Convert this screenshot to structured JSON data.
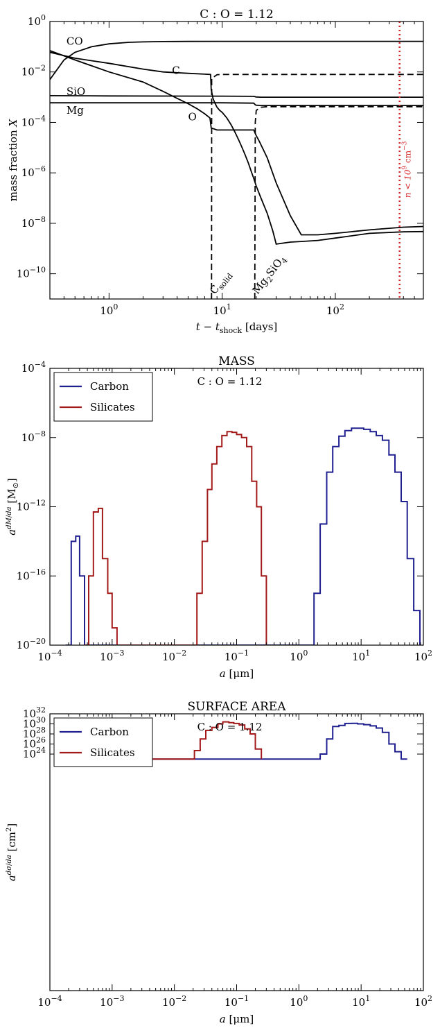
{
  "chart_data": [
    {
      "type": "line",
      "title": "C : O = 1.12",
      "xlabel_html": "t − t",
      "xlabel_sub": "shock",
      "xlabel_unit": "[days]",
      "ylabel_text": "mass fraction",
      "ylabel_var": "X",
      "xscale": "log",
      "yscale": "log",
      "xlim": [
        0.3,
        600
      ],
      "ylim": [
        1e-11,
        1
      ],
      "x_ticks": [
        {
          "v": 1,
          "b": "10",
          "e": "0"
        },
        {
          "v": 10,
          "b": "10",
          "e": "1"
        },
        {
          "v": 100,
          "b": "10",
          "e": "2"
        }
      ],
      "y_ticks": [
        {
          "v": 1,
          "b": "10",
          "e": "0"
        },
        {
          "v": 0.01,
          "b": "10",
          "e": "−2"
        },
        {
          "v": 0.0001,
          "b": "10",
          "e": "−4"
        },
        {
          "v": 1e-06,
          "b": "10",
          "e": "−6"
        },
        {
          "v": 1e-08,
          "b": "10",
          "e": "−8"
        },
        {
          "v": 1e-10,
          "b": "10",
          "e": "−10"
        }
      ],
      "series": [
        {
          "name": "CO",
          "style": "solid",
          "label_at": [
            0.42,
            0.12
          ],
          "x": [
            0.3,
            0.4,
            0.5,
            0.7,
            1,
            1.5,
            2,
            3,
            5,
            10,
            30,
            100,
            600
          ],
          "y": [
            0.005,
            0.03,
            0.06,
            0.1,
            0.13,
            0.15,
            0.155,
            0.16,
            0.162,
            0.163,
            0.163,
            0.163,
            0.163
          ]
        },
        {
          "name": "C",
          "style": "solid",
          "label_at": [
            3.6,
            0.0085
          ],
          "x": [
            0.3,
            0.5,
            1,
            2,
            3,
            5,
            7,
            7.9,
            8,
            8.3,
            8.6,
            9,
            9.5,
            10,
            11,
            12,
            13,
            14,
            15,
            16,
            17,
            18,
            19,
            20,
            22,
            25,
            28,
            30,
            40,
            50,
            70,
            100,
            200,
            400,
            600
          ],
          "y": [
            0.06,
            0.035,
            0.022,
            0.013,
            0.01,
            0.0088,
            0.0082,
            0.008,
            0.002,
            0.0009,
            0.0006,
            0.0004,
            0.0003,
            0.00025,
            0.00015,
            8e-05,
            4e-05,
            2e-05,
            1e-05,
            5e-06,
            2.5e-06,
            1.2e-06,
            6e-07,
            3e-07,
            1e-07,
            2.5e-08,
            5e-09,
            1.5e-09,
            1.8e-09,
            1.9e-09,
            2.1e-09,
            2.6e-09,
            4e-09,
            4.6e-09,
            4.7e-09
          ]
        },
        {
          "name": "SiO",
          "style": "solid",
          "label_at": [
            0.42,
            0.0012
          ],
          "x": [
            0.3,
            1,
            10,
            19,
            20,
            22,
            30,
            100,
            600
          ],
          "y": [
            0.00115,
            0.00112,
            0.0011,
            0.00108,
            0.00102,
            0.001,
            0.001,
            0.001,
            0.001
          ]
        },
        {
          "name": "Mg",
          "style": "solid",
          "label_at": [
            0.42,
            0.00022
          ],
          "x": [
            0.3,
            1,
            10,
            19,
            19.6,
            20,
            22,
            30,
            100,
            600
          ],
          "y": [
            0.0006,
            0.0006,
            0.0006,
            0.00058,
            0.0005,
            0.00048,
            0.00047,
            0.00047,
            0.00047,
            0.00047
          ]
        },
        {
          "name": "O",
          "style": "solid",
          "label_at": [
            5,
            0.00012
          ],
          "x": [
            0.3,
            0.5,
            1,
            2,
            3,
            4,
            5,
            6,
            7,
            7.8,
            8,
            9,
            10,
            15,
            19,
            20,
            21,
            25,
            30,
            40,
            50,
            70,
            100,
            200,
            400,
            600
          ],
          "y": [
            0.07,
            0.03,
            0.01,
            0.004,
            0.0017,
            0.0009,
            0.00055,
            0.00035,
            0.00022,
            0.00015,
            6e-05,
            5e-05,
            5e-05,
            5e-05,
            5e-05,
            3e-05,
            2e-05,
            4e-06,
            4e-07,
            2e-08,
            3.5e-09,
            3.5e-09,
            4e-09,
            5.5e-09,
            7e-09,
            7.5e-09
          ]
        },
        {
          "name": "",
          "style": "dashed",
          "x": [
            8.05,
            8.08,
            9,
            10,
            15,
            20,
            50,
            100,
            600
          ],
          "y": [
            1e-11,
            0.0056,
            0.0078,
            0.008,
            0.008,
            0.008,
            0.008,
            0.008,
            0.008
          ]
        },
        {
          "name": "",
          "style": "dashed",
          "x": [
            19.4,
            19.6,
            20,
            22,
            25,
            30,
            100,
            600
          ],
          "y": [
            1e-11,
            0.0001,
            0.0003,
            0.0004,
            0.00042,
            0.00042,
            0.00042,
            0.00042
          ]
        }
      ],
      "annotations": [
        {
          "main": "C",
          "sub": "solid",
          "x": 8.6,
          "y": 1e-11
        },
        {
          "main": "Mg",
          "sub": "2",
          "main2": "SiO",
          "sub2": "4",
          "x": 20.5,
          "y": 1e-11
        }
      ],
      "vline": {
        "x": 370,
        "color": "#d62728",
        "label_pre": "n < 10",
        "label_sup": "9",
        "label_unit": " cm",
        "label_sup2": "−3"
      }
    },
    {
      "type": "step",
      "title": "MASS",
      "inset_text": "C : O = 1.12",
      "xlabel_var": "a",
      "xlabel_unit": "[μm]",
      "ylabel_main": "a",
      "ylabel_frac_num": "dM",
      "ylabel_frac_den": "da",
      "ylabel_unit_pre": "[M",
      "ylabel_unit_sub": "⊙",
      "ylabel_unit_post": "]",
      "xscale": "log",
      "yscale": "log",
      "xlim": [
        0.0001,
        100
      ],
      "ylim": [
        1e-20,
        0.0001
      ],
      "x_ticks": [
        {
          "v": 0.0001,
          "b": "10",
          "e": "−4"
        },
        {
          "v": 0.001,
          "b": "10",
          "e": "−3"
        },
        {
          "v": 0.01,
          "b": "10",
          "e": "−2"
        },
        {
          "v": 0.1,
          "b": "10",
          "e": "−1"
        },
        {
          "v": 1,
          "b": "10",
          "e": "0"
        },
        {
          "v": 10,
          "b": "10",
          "e": "1"
        },
        {
          "v": 100,
          "b": "10",
          "e": "2"
        }
      ],
      "y_ticks": [
        {
          "v": 0.0001,
          "b": "10",
          "e": "−4"
        },
        {
          "v": 1e-08,
          "b": "10",
          "e": "−8"
        },
        {
          "v": 1e-12,
          "b": "10",
          "e": "−12"
        },
        {
          "v": 1e-16,
          "b": "10",
          "e": "−16"
        },
        {
          "v": 1e-20,
          "b": "10",
          "e": "−20"
        }
      ],
      "legend": [
        {
          "name": "Carbon",
          "color": "#1f1f8f"
        },
        {
          "name": "Silicates",
          "color": "#a31a1a"
        }
      ],
      "series": [
        {
          "name": "Carbon",
          "color": "#1f1f8f",
          "x": [
            0.00018,
            0.00022,
            0.00026,
            0.0003,
            0.00036,
            1.4,
            1.75,
            2.2,
            2.8,
            3.5,
            4.4,
            5.5,
            7,
            8.8,
            11,
            14,
            17.5,
            22,
            28,
            35,
            44,
            55,
            70,
            88
          ],
          "y": [
            1e-20,
            1e-14,
            2e-14,
            1e-16,
            1e-20,
            1e-20,
            1e-17,
            1e-13,
            1e-10,
            3e-09,
            1.2e-08,
            2.5e-08,
            3.5e-08,
            3.5e-08,
            3e-08,
            2.2e-08,
            1.3e-08,
            7e-09,
            1e-09,
            1e-10,
            2e-12,
            1e-15,
            1e-18,
            1e-20
          ]
        },
        {
          "name": "Silicates",
          "color": "#a31a1a",
          "x": [
            0.00035,
            0.00042,
            0.0005,
            0.0006,
            0.0007,
            0.00085,
            0.001,
            0.0012,
            0.019,
            0.023,
            0.028,
            0.034,
            0.04,
            0.048,
            0.058,
            0.07,
            0.084,
            0.1,
            0.12,
            0.145,
            0.175,
            0.21,
            0.25,
            0.3
          ],
          "y": [
            1e-20,
            1e-16,
            5e-13,
            8e-13,
            1e-15,
            1e-17,
            1e-19,
            1e-20,
            1e-20,
            1e-17,
            1e-14,
            1e-11,
            3e-10,
            3e-09,
            1.3e-08,
            2.2e-08,
            2e-08,
            1.5e-08,
            1e-08,
            3e-09,
            3e-11,
            1e-12,
            1e-16,
            1e-20
          ]
        }
      ]
    },
    {
      "type": "step",
      "title": "SURFACE AREA",
      "inset_text": "C : O = 1.12",
      "xlabel_var": "a",
      "xlabel_unit": "[μm]",
      "ylabel_main": "a",
      "ylabel_frac_num": "dσ",
      "ylabel_frac_den": "da",
      "ylabel_unit_pre": "[cm",
      "ylabel_unit_sup": "2",
      "ylabel_unit_post": "]",
      "xscale": "log",
      "yscale": "log",
      "xlim": [
        0.0001,
        100
      ],
      "ylim": [
        1e-23,
        1e+32
      ],
      "x_ticks": [
        {
          "v": 0.0001,
          "b": "10",
          "e": "−4"
        },
        {
          "v": 0.001,
          "b": "10",
          "e": "−3"
        },
        {
          "v": 0.01,
          "b": "10",
          "e": "−2"
        },
        {
          "v": 0.1,
          "b": "10",
          "e": "−1"
        },
        {
          "v": 1,
          "b": "10",
          "e": "0"
        },
        {
          "v": 10,
          "b": "10",
          "e": "1"
        },
        {
          "v": 100,
          "b": "10",
          "e": "2"
        }
      ],
      "y_ticks": [
        {
          "v": 1e+32,
          "b": "10",
          "e": "32"
        },
        {
          "v": 1e+30,
          "b": "10",
          "e": "30"
        },
        {
          "v": 1e+28,
          "b": "10",
          "e": "28"
        },
        {
          "v": 1e+26,
          "b": "10",
          "e": "26"
        },
        {
          "v": 1e+24,
          "b": "10",
          "e": "24"
        }
      ],
      "legend": [
        {
          "name": "Carbon",
          "color": "#1f1f8f"
        },
        {
          "name": "Silicates",
          "color": "#a31a1a"
        }
      ],
      "series": [
        {
          "name": "Carbon",
          "color": "#1f1f8f",
          "x": [
            0.00015,
            0.00018,
            0.00022,
            0.00026,
            0.00031,
            1.8,
            2.2,
            2.8,
            3.5,
            4.4,
            5.5,
            7,
            8.8,
            11,
            14,
            17.5,
            22,
            28,
            35,
            44,
            55
          ],
          "y": [
            1e+23,
            1e+26,
            1e+28,
            1e+23,
            1e+23,
            1e+23,
            1e+24,
            1e+27,
            3e+29,
            5e+29,
            1.2e+30,
            1.3e+30,
            1e+30,
            7e+29,
            4e+29,
            1.5e+29,
            2e+28,
            1e+26,
            3e+24,
            1e+23,
            1e+23
          ]
        },
        {
          "name": "Silicates",
          "color": "#a31a1a",
          "x": [
            0.00025,
            0.0003,
            0.00036,
            0.00043,
            0.017,
            0.021,
            0.026,
            0.032,
            0.04,
            0.05,
            0.06,
            0.075,
            0.09,
            0.11,
            0.135,
            0.165,
            0.2,
            0.25
          ],
          "y": [
            1e+23,
            1e+28,
            2e+28,
            1e+23,
            1e+23,
            5e+24,
            1e+27,
            5e+28,
            2e+29,
            1e+30,
            2.5e+30,
            1.7e+30,
            1.2e+30,
            6e+29,
            1e+29,
            1e+28,
            1e+25,
            1e+23
          ]
        }
      ]
    }
  ]
}
